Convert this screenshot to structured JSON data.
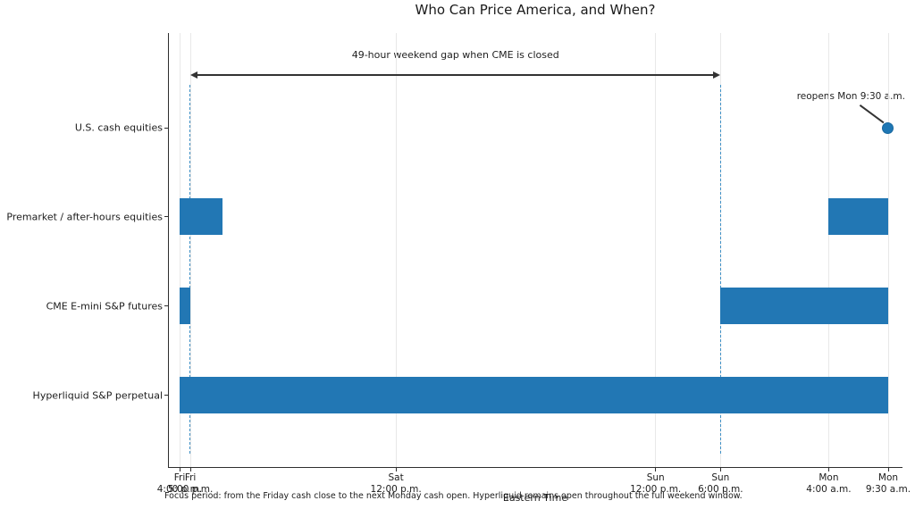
{
  "title": "Who Can Price America, and When?",
  "xlabel": "Eastern Time",
  "footer": "Focus period: from the Friday cash close to the next Monday cash open. Hyperliquid remains open throughout the full weekend window.",
  "colors": {
    "bar": "#2277b4",
    "marker": "#1f77b4",
    "dashed_guide": "#4090c5",
    "gridline": "#e8e8e8",
    "spine": "#2e2e2e",
    "annotation": "#333333"
  },
  "chart_data": {
    "type": "bar",
    "subtype": "horizontal-gantt-timeline",
    "title": "Who Can Price America, and When?",
    "xlabel": "Eastern Time",
    "time_axis": {
      "unit": "hours since Fri 4:00 p.m. Eastern Time",
      "range": [
        0,
        65.5
      ],
      "grid": true,
      "ticks": [
        {
          "t": 0,
          "day": "Fri",
          "time": "4:00 p.m."
        },
        {
          "t": 1,
          "day": "Fri",
          "time": "5:00 p.m."
        },
        {
          "t": 20,
          "day": "Sat",
          "time": "12:00 p.m."
        },
        {
          "t": 44,
          "day": "Sun",
          "time": "12:00 p.m."
        },
        {
          "t": 50,
          "day": "Sun",
          "time": "6:00 p.m."
        },
        {
          "t": 60,
          "day": "Mon",
          "time": "4:00 a.m."
        },
        {
          "t": 65.5,
          "day": "Mon",
          "time": "9:30 a.m."
        }
      ]
    },
    "rows": [
      {
        "label": "U.S. cash equities",
        "segments": [],
        "marker": {
          "t": 65.5,
          "annotation": "reopens Mon 9:30 a.m."
        }
      },
      {
        "label": "Premarket / after-hours equities",
        "segments": [
          [
            0,
            4
          ],
          [
            60,
            65.5
          ]
        ]
      },
      {
        "label": "CME E-mini S&P futures",
        "segments": [
          [
            0,
            1
          ],
          [
            50,
            65.5
          ]
        ]
      },
      {
        "label": "Hyperliquid S&P perpetual",
        "segments": [
          [
            0,
            65.5
          ]
        ]
      }
    ],
    "guides": [
      {
        "t": 1,
        "meaning": "CME close Fri 5:00 p.m."
      },
      {
        "t": 50,
        "meaning": "CME reopen Sun 6:00 p.m."
      }
    ],
    "gap_annotation": {
      "label": "49-hour weekend gap when CME is closed",
      "from_t": 1,
      "to_t": 50
    }
  }
}
